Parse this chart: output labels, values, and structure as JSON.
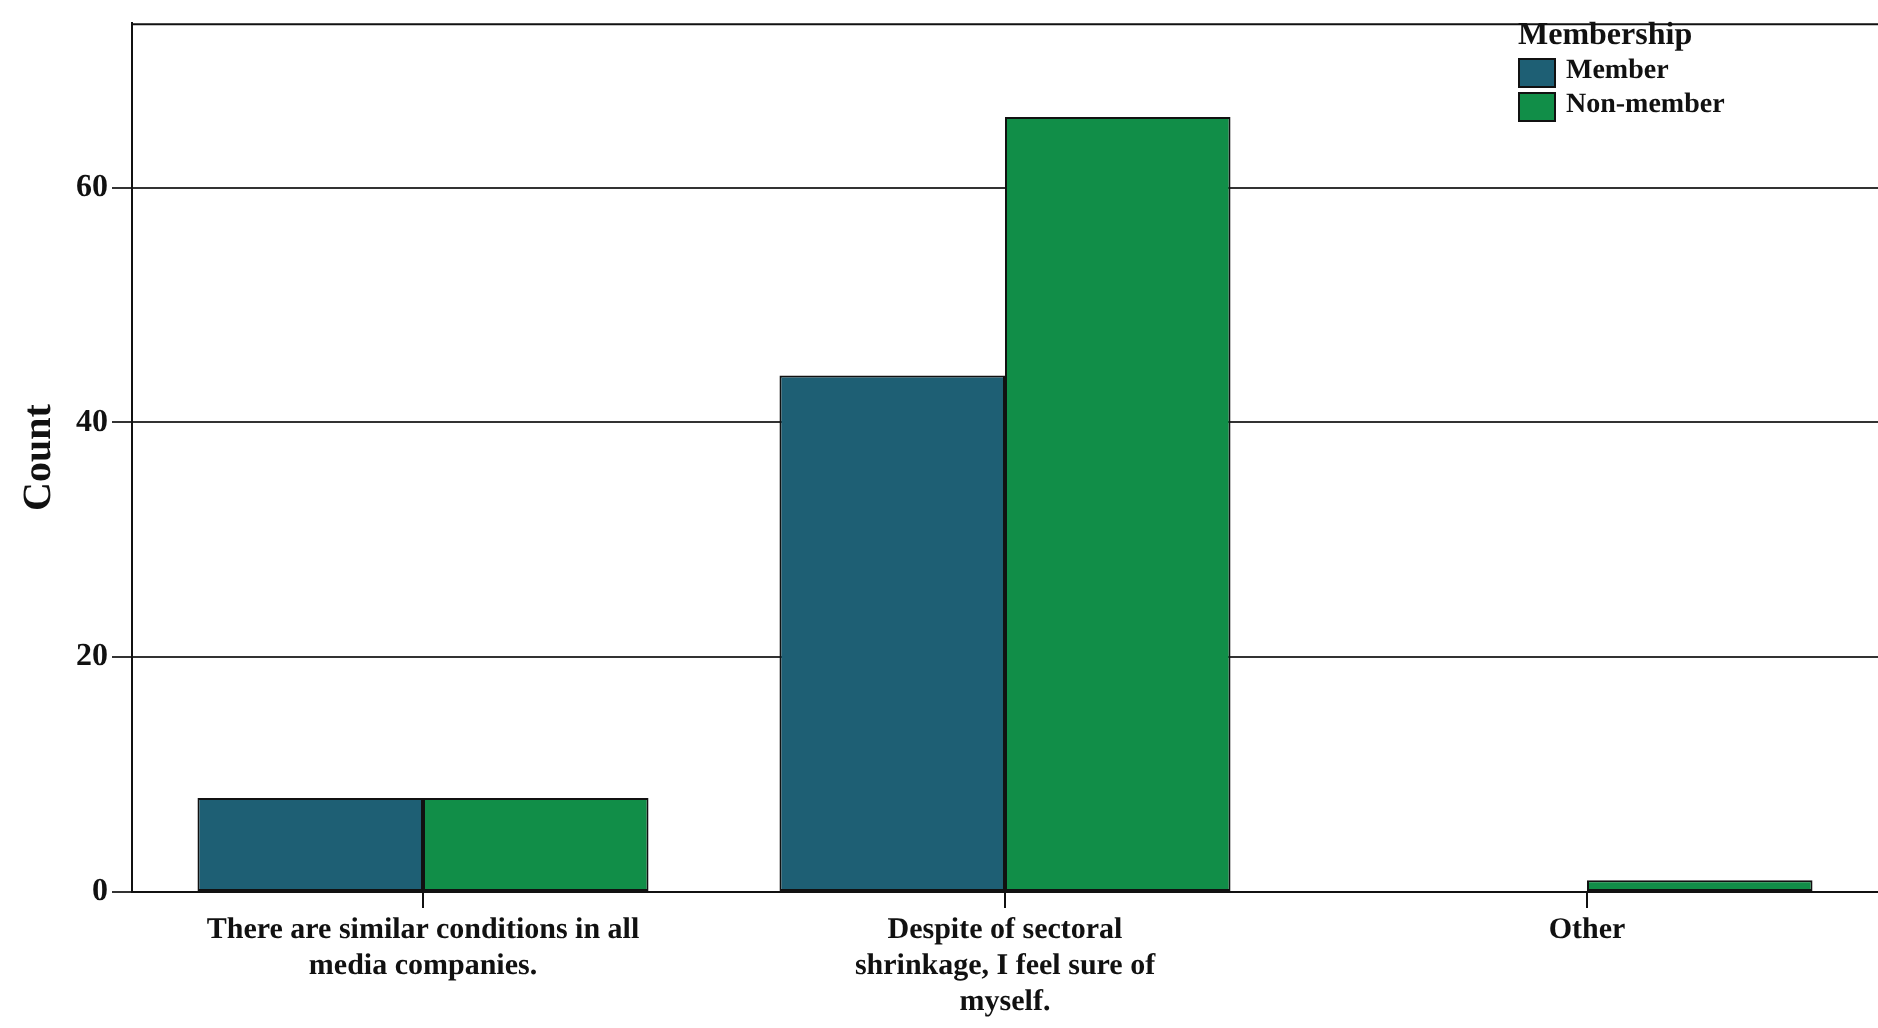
{
  "chart_data": {
    "type": "bar",
    "categories": [
      "There are similar conditions in all media companies.",
      "Despite of sectoral shrinkage, I feel sure of myself.",
      "Other"
    ],
    "series": [
      {
        "name": "Member",
        "color": "#1e5f74",
        "values": [
          8,
          44,
          0
        ]
      },
      {
        "name": "Non-member",
        "color": "#118e48",
        "values": [
          8,
          66,
          1
        ]
      }
    ],
    "ylabel": "Count",
    "legend_title": "Membership",
    "legend": "top right",
    "ylim": [
      0,
      74
    ],
    "yticks": [
      0,
      20,
      40,
      60
    ],
    "grid": "y"
  }
}
